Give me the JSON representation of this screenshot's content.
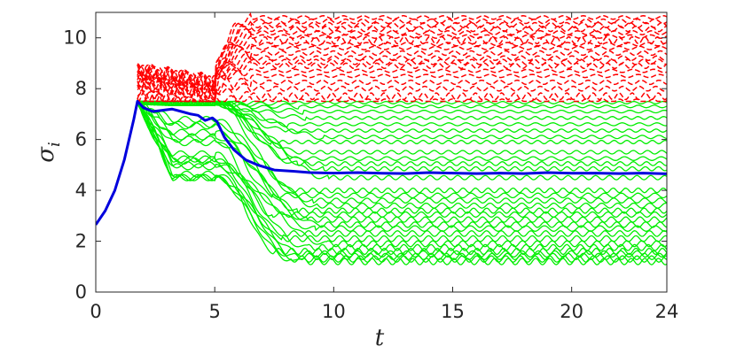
{
  "chart_data": {
    "type": "line",
    "title": "",
    "xlabel": "t",
    "ylabel": "σ",
    "ylabel_subscript": "i",
    "xlim": [
      0,
      24
    ],
    "ylim": [
      0,
      11
    ],
    "xticks": [
      0,
      5,
      10,
      15,
      20,
      24
    ],
    "yticks": [
      0,
      2,
      4,
      6,
      8,
      10
    ],
    "grid": false,
    "colors": {
      "red": "#ff0000",
      "green": "#00ee00",
      "blue": "#0000dd",
      "axis": "#262626"
    },
    "growth_phase": {
      "x": [
        0,
        0.4,
        0.8,
        1.2,
        1.6,
        1.75
      ],
      "y": [
        2.65,
        3.2,
        4.0,
        5.2,
        6.8,
        7.5
      ]
    },
    "red_series": {
      "style": "dashed",
      "name": "",
      "lower_bound": 7.5,
      "transient_x": [
        1.75,
        2.5,
        3.5,
        4.5,
        5.0
      ],
      "steady_levels": [
        7.5,
        7.7,
        8.0,
        8.25,
        8.5,
        8.7,
        8.9,
        9.05,
        9.2,
        9.4,
        9.6,
        9.75,
        9.9,
        10.05,
        10.2,
        10.35,
        10.5,
        10.65,
        10.8
      ]
    },
    "green_series": {
      "style": "solid",
      "name": "",
      "upper_bound": 7.5,
      "transient_x": [
        1.75,
        2.5,
        3.5,
        4.5,
        5.0,
        6.5,
        8.5,
        10.0
      ],
      "steady_levels": [
        1.2,
        1.3,
        1.4,
        1.5,
        1.6,
        1.75,
        1.9,
        2.1,
        2.3,
        2.5,
        2.65,
        2.85,
        3.05,
        3.2,
        3.4,
        3.6,
        3.8,
        4.0,
        4.5,
        4.85,
        5.05,
        5.25,
        5.5,
        5.9,
        6.1,
        6.35,
        6.6,
        6.85,
        7.1,
        7.3,
        7.45
      ]
    },
    "highlight_series": {
      "name": "",
      "x": [
        0,
        0.4,
        0.8,
        1.2,
        1.6,
        1.75,
        2.0,
        2.4,
        2.8,
        3.2,
        3.6,
        4.0,
        4.3,
        4.6,
        4.9,
        5.1,
        5.4,
        5.8,
        6.3,
        6.8,
        7.5,
        8.3,
        9.0,
        10,
        11,
        12,
        13,
        14,
        15,
        16,
        17,
        18,
        19,
        20,
        21,
        22,
        23,
        24
      ],
      "y": [
        2.65,
        3.2,
        4.0,
        5.2,
        6.8,
        7.5,
        7.25,
        7.1,
        7.15,
        7.2,
        7.1,
        7.0,
        6.95,
        6.75,
        6.85,
        6.7,
        6.1,
        5.6,
        5.2,
        5.0,
        4.8,
        4.75,
        4.7,
        4.68,
        4.7,
        4.67,
        4.66,
        4.7,
        4.68,
        4.66,
        4.68,
        4.66,
        4.7,
        4.67,
        4.68,
        4.66,
        4.68,
        4.65
      ]
    }
  }
}
